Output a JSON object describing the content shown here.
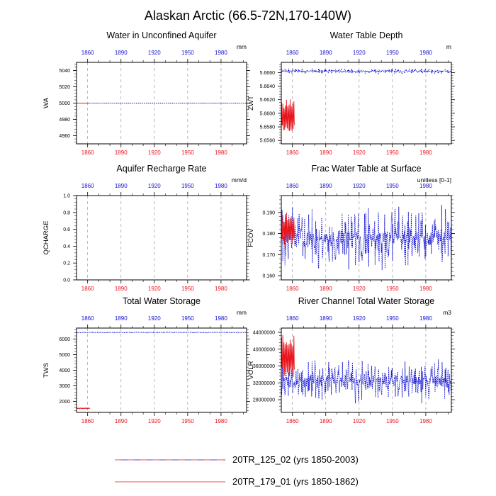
{
  "figure": {
    "title": "Alaskan Arctic (66.5-72N,170-140W)"
  },
  "legend": [
    {
      "label": "20TR_125_02 (yrs 1850-2003)",
      "style": "dashed-red-blue"
    },
    {
      "label": "20TR_179_01 (yrs 1850-1862)",
      "style": "solid-red"
    }
  ],
  "colors": {
    "case1": "#1010d0",
    "case2": "#e8141c",
    "gridline": "#999999",
    "axis": "#000000"
  },
  "chart_data": [
    {
      "type": "line",
      "title": "Water in Unconfined Aquifer",
      "ylabel": "WA",
      "units": "mm",
      "xlim": [
        1850,
        2003
      ],
      "ylim": [
        4950,
        5050
      ],
      "yticks": [
        4960,
        4980,
        5000,
        5020,
        5040
      ],
      "ytick_labels": [
        "4960",
        "4980",
        "5000",
        "5020",
        "5040"
      ],
      "xticks": [
        1860,
        1890,
        1920,
        1950,
        1980
      ],
      "series": [
        {
          "name": "20TR_125_02",
          "x_range": [
            1850,
            2003
          ],
          "mean": 5000,
          "amp": 0,
          "kind": "flat"
        },
        {
          "name": "20TR_179_01",
          "x_range": [
            1850,
            1862
          ],
          "mean": 5000,
          "amp": 0,
          "kind": "flat"
        }
      ]
    },
    {
      "type": "line",
      "title": "Water Table Depth",
      "ylabel": "ZWT",
      "units": "m",
      "xlim": [
        1850,
        2003
      ],
      "ylim": [
        5.6555,
        5.6675
      ],
      "yticks": [
        5.656,
        5.658,
        5.66,
        5.662,
        5.664,
        5.666
      ],
      "ytick_labels": [
        "5.6560",
        "5.6580",
        "5.6600",
        "5.6620",
        "5.6640",
        "5.6660"
      ],
      "xticks": [
        1860,
        1890,
        1920,
        1950,
        1980
      ],
      "series": [
        {
          "name": "20TR_125_02",
          "x_range": [
            1850,
            2003
          ],
          "mean": 5.6662,
          "amp": 0.0004,
          "kind": "noise"
        },
        {
          "name": "20TR_179_01",
          "x_range": [
            1850,
            1862
          ],
          "mean": 5.6595,
          "amp": 0.0027,
          "kind": "osc"
        }
      ]
    },
    {
      "type": "line",
      "title": "Aquifer Recharge Rate",
      "ylabel": "QCHARGE",
      "units": "mm/d",
      "xlim": [
        1850,
        2003
      ],
      "ylim": [
        0,
        1
      ],
      "yticks": [
        0,
        0.2,
        0.4,
        0.6,
        0.8,
        1.0
      ],
      "ytick_labels": [
        "0.0",
        "0.2",
        "0.4",
        "0.6",
        "0.8",
        "1.0"
      ],
      "xticks": [
        1860,
        1890,
        1920,
        1950,
        1980
      ],
      "series": [
        {
          "name": "20TR_125_02",
          "x_range": [
            1850,
            2003
          ],
          "mean": 0,
          "amp": 0,
          "kind": "none"
        },
        {
          "name": "20TR_179_01",
          "x_range": [
            1850,
            1862
          ],
          "mean": 0,
          "amp": 0,
          "kind": "none"
        }
      ]
    },
    {
      "type": "line",
      "title": "Frac Water Table at Surface",
      "ylabel": "FCOV",
      "units": "unitless [0-1]",
      "xlim": [
        1850,
        2003
      ],
      "ylim": [
        0.158,
        0.198
      ],
      "yticks": [
        0.16,
        0.17,
        0.18,
        0.19
      ],
      "ytick_labels": [
        "0.160",
        "0.170",
        "0.180",
        "0.190"
      ],
      "xticks": [
        1860,
        1890,
        1920,
        1950,
        1980
      ],
      "series": [
        {
          "name": "20TR_125_02",
          "x_range": [
            1850,
            2003
          ],
          "mean": 0.178,
          "amp": 0.016,
          "kind": "noise"
        },
        {
          "name": "20TR_179_01",
          "x_range": [
            1850,
            1862
          ],
          "mean": 0.182,
          "amp": 0.008,
          "kind": "osc"
        }
      ]
    },
    {
      "type": "line",
      "title": "Total Water Storage",
      "ylabel": "TWS",
      "units": "mm",
      "xlim": [
        1850,
        2003
      ],
      "ylim": [
        1300,
        6700
      ],
      "yticks": [
        2000,
        3000,
        4000,
        5000,
        6000
      ],
      "ytick_labels": [
        "2000",
        "3000",
        "4000",
        "5000",
        "6000"
      ],
      "xticks": [
        1860,
        1890,
        1920,
        1950,
        1980
      ],
      "series": [
        {
          "name": "20TR_125_02",
          "x_range": [
            1850,
            2003
          ],
          "mean": 6420,
          "amp": 30,
          "kind": "noise"
        },
        {
          "name": "20TR_179_01",
          "x_range": [
            1850,
            1862
          ],
          "mean": 1560,
          "amp": 30,
          "kind": "osc"
        }
      ]
    },
    {
      "type": "line",
      "title": "River Channel Total Water Storage",
      "ylabel": "VOLR",
      "units": "m3",
      "xlim": [
        1850,
        2003
      ],
      "ylim": [
        25000000,
        45000000
      ],
      "yticks": [
        28000000,
        32000000,
        36000000,
        40000000,
        44000000
      ],
      "ytick_labels": [
        "28000000",
        "32000000",
        "36000000",
        "40000000",
        "44000000"
      ],
      "xticks": [
        1860,
        1890,
        1920,
        1950,
        1980
      ],
      "series": [
        {
          "name": "20TR_125_02",
          "x_range": [
            1850,
            2003
          ],
          "mean": 32500000,
          "amp": 5500000,
          "kind": "noise"
        },
        {
          "name": "20TR_179_01",
          "x_range": [
            1850,
            1862
          ],
          "mean": 38000000,
          "amp": 5500000,
          "kind": "osc"
        }
      ]
    }
  ]
}
